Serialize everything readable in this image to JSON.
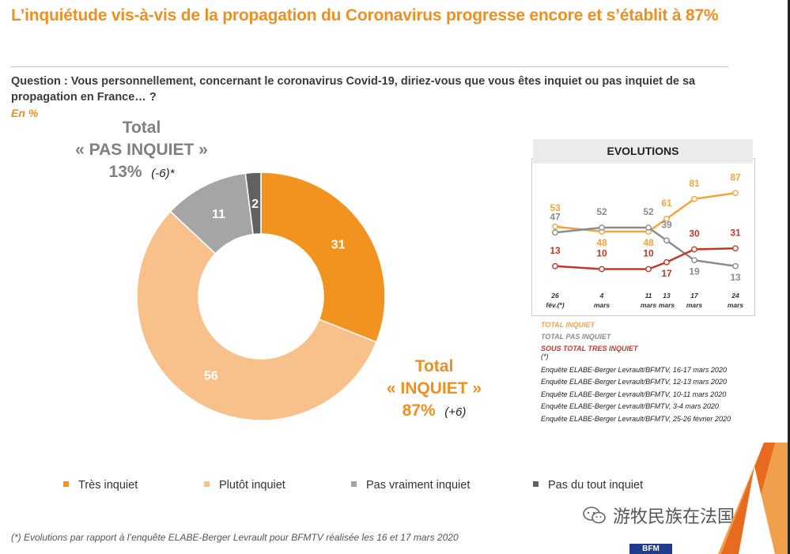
{
  "title": "L’inquiétude vis-à-vis de la propagation du Coronavirus progresse encore et s’établit à 87%",
  "question": "Question : Vous personnellement, concernant le coronavirus Covid-19, diriez-vous que vous êtes inquiet ou pas inquiet de sa propagation en France… ?",
  "unit": "En %",
  "total_pas_inquiet": {
    "line1": "Total",
    "line2": "« PAS INQUIET »",
    "pct": "13%",
    "change": "(-6)*"
  },
  "total_inquiet": {
    "line1": "Total",
    "line2": "« INQUIET »",
    "pct": "87%",
    "change": "(+6)"
  },
  "colors": {
    "tres": "#f3931f",
    "plutot": "#f8c08a",
    "pas_vraiment": "#a5a5a5",
    "pas_du_tout": "#626262",
    "accent": "#ee8f1e"
  },
  "chart_data": [
    {
      "type": "pie",
      "style": "donut",
      "slices": [
        {
          "key": "tres",
          "label": "Très inquiet",
          "value": 31
        },
        {
          "key": "plutot",
          "label": "Plutôt inquiet",
          "value": 56
        },
        {
          "key": "pas_vraiment",
          "label": "Pas vraiment inquiet",
          "value": 11
        },
        {
          "key": "pas_du_tout",
          "label": "Pas du tout inquiet",
          "value": 2
        }
      ]
    },
    {
      "type": "line",
      "title": "EVOLUTIONS",
      "x": [
        "26 févr.(*)",
        "4 mars",
        "11 mars",
        "13 mars",
        "17 mars",
        "24 mars"
      ],
      "x_lines": [
        [
          "26",
          "fév.(*)"
        ],
        [
          "4",
          "mars"
        ],
        [
          "11",
          "mars"
        ],
        [
          "13",
          "mars"
        ],
        [
          "17",
          "mars"
        ],
        [
          "24",
          "mars"
        ]
      ],
      "ylim": [
        0,
        100
      ],
      "series": [
        {
          "key": "total_inquiet",
          "name": "TOTAL INQUIET",
          "color": "#f3a43c",
          "values": [
            53,
            48,
            48,
            61,
            81,
            87
          ]
        },
        {
          "key": "total_pas_inquiet",
          "name": "TOTAL PAS INQUIET",
          "color": "#8c8c8c",
          "values": [
            47,
            52,
            52,
            39,
            19,
            13
          ]
        },
        {
          "key": "tres_inquiet",
          "name": "SOUS TOTAL TRES INQUIET",
          "color": "#c0392b",
          "values": [
            13,
            10,
            10,
            17,
            30,
            31
          ]
        }
      ]
    }
  ],
  "evo_asterisk": "(*)",
  "surveys": [
    "Enquête ELABE-Berger Levrault/BFMTV, 16-17 mars 2020",
    "Enquête ELABE-Berger Levrault/BFMTV, 12-13 mars 2020",
    "Enquête ELABE-Berger Levrault/BFMTV, 10-11 mars 2020",
    "Enquête ELABE-Berger Levrault/BFMTV, 3-4 mars 2020",
    "Enquête ELABE-Berger Levrault/BFMTV, 25-26 février 2020"
  ],
  "footnote": "(*) Evolutions par rapport à l’enquête ELABE-Berger Levrault pour BFMTV réalisée les 16 et 17 mars 2020",
  "watermark": "游牧民族在法国",
  "logo_text": "BFM"
}
